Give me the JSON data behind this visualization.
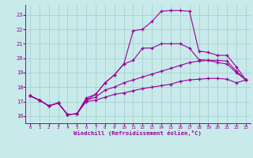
{
  "xlabel": "Windchill (Refroidissement éolien,°C)",
  "xlim": [
    -0.5,
    23.5
  ],
  "ylim": [
    15.5,
    23.7
  ],
  "xticks": [
    0,
    1,
    2,
    3,
    4,
    5,
    6,
    7,
    8,
    9,
    10,
    11,
    12,
    13,
    14,
    15,
    16,
    17,
    18,
    19,
    20,
    21,
    22,
    23
  ],
  "yticks": [
    16,
    17,
    18,
    19,
    20,
    21,
    22,
    23
  ],
  "bg_color": "#c8eaea",
  "grid_color": "#a0cccc",
  "line_color": "#990099",
  "line1_y": [
    17.4,
    17.1,
    16.7,
    16.9,
    16.1,
    16.15,
    17.25,
    17.5,
    18.3,
    18.85,
    19.6,
    21.9,
    22.0,
    22.55,
    23.25,
    23.3,
    23.3,
    23.25,
    20.5,
    20.4,
    20.2,
    20.2,
    19.4,
    18.5
  ],
  "line2_y": [
    17.4,
    17.1,
    16.7,
    16.9,
    16.1,
    16.15,
    17.1,
    17.5,
    18.3,
    18.85,
    19.6,
    19.85,
    20.7,
    20.7,
    21.0,
    21.0,
    21.0,
    20.7,
    19.9,
    19.85,
    19.7,
    19.6,
    19.0,
    18.5
  ],
  "line3_y": [
    17.4,
    17.1,
    16.7,
    16.9,
    16.1,
    16.15,
    17.1,
    17.3,
    17.8,
    18.0,
    18.3,
    18.5,
    18.7,
    18.9,
    19.1,
    19.3,
    19.5,
    19.7,
    19.8,
    19.85,
    19.85,
    19.8,
    19.1,
    18.5
  ],
  "line4_y": [
    17.4,
    17.1,
    16.7,
    16.9,
    16.1,
    16.15,
    17.0,
    17.1,
    17.3,
    17.5,
    17.6,
    17.75,
    17.9,
    18.0,
    18.1,
    18.2,
    18.4,
    18.5,
    18.55,
    18.6,
    18.6,
    18.55,
    18.3,
    18.5
  ]
}
